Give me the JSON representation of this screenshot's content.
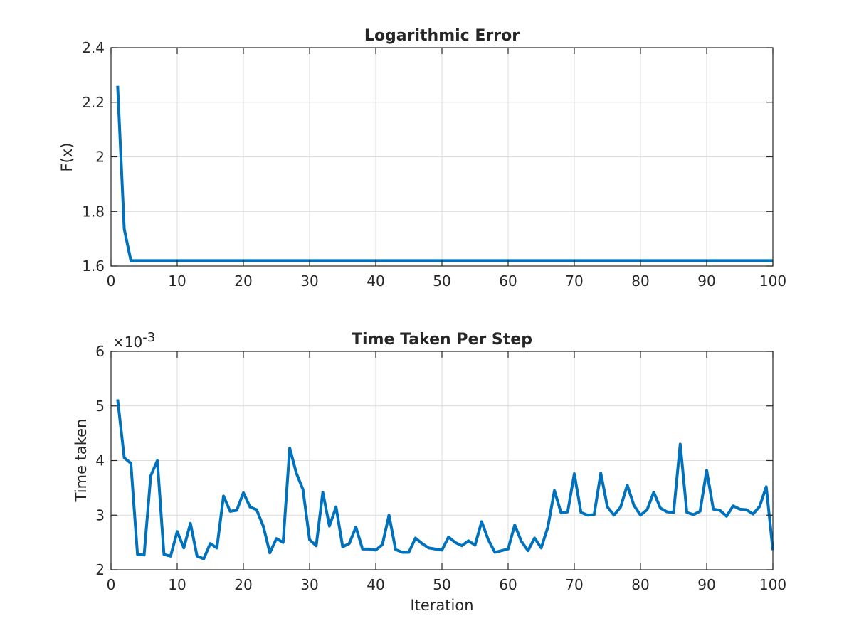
{
  "figure": {
    "background": "#ffffff",
    "line_color": "#0072BD",
    "grid_color": "#dcdcdc"
  },
  "chart_data": [
    {
      "type": "line",
      "title": "Logarithmic Error",
      "xlabel": "",
      "ylabel": "F(x)",
      "xlim": [
        0,
        100
      ],
      "ylim": [
        1.6,
        2.4
      ],
      "xticks": [
        0,
        10,
        20,
        30,
        40,
        50,
        60,
        70,
        80,
        90,
        100
      ],
      "yticks": [
        1.6,
        1.8,
        2.0,
        2.2,
        2.4
      ],
      "xtick_labels": [
        "0",
        "10",
        "20",
        "30",
        "40",
        "50",
        "60",
        "70",
        "80",
        "90",
        "100"
      ],
      "ytick_labels": [
        "1.6",
        "1.8",
        "2",
        "2.2",
        "2.4"
      ],
      "grid": true,
      "x_start": 1,
      "series": [
        {
          "values": [
            2.26,
            1.735,
            1.62,
            1.62,
            1.62,
            1.62,
            1.62,
            1.62,
            1.62,
            1.62,
            1.62,
            1.62,
            1.62,
            1.62,
            1.62,
            1.62,
            1.62,
            1.62,
            1.62,
            1.62,
            1.62,
            1.62,
            1.62,
            1.62,
            1.62,
            1.62,
            1.62,
            1.62,
            1.62,
            1.62,
            1.62,
            1.62,
            1.62,
            1.62,
            1.62,
            1.62,
            1.62,
            1.62,
            1.62,
            1.62,
            1.62,
            1.62,
            1.62,
            1.62,
            1.62,
            1.62,
            1.62,
            1.62,
            1.62,
            1.62,
            1.62,
            1.62,
            1.62,
            1.62,
            1.62,
            1.62,
            1.62,
            1.62,
            1.62,
            1.62,
            1.62,
            1.62,
            1.62,
            1.62,
            1.62,
            1.62,
            1.62,
            1.62,
            1.62,
            1.62,
            1.62,
            1.62,
            1.62,
            1.62,
            1.62,
            1.62,
            1.62,
            1.62,
            1.62,
            1.62,
            1.62,
            1.62,
            1.62,
            1.62,
            1.62,
            1.62,
            1.62,
            1.62,
            1.62,
            1.62,
            1.62,
            1.62,
            1.62,
            1.62,
            1.62,
            1.62,
            1.62,
            1.62,
            1.62,
            1.62
          ]
        }
      ]
    },
    {
      "type": "line",
      "title": "Time Taken Per Step",
      "xlabel": "Iteration",
      "ylabel": "Time taken",
      "exponent_base": "×10",
      "exponent_power": "-3",
      "xlim": [
        0,
        100
      ],
      "ylim": [
        2,
        6
      ],
      "xticks": [
        0,
        10,
        20,
        30,
        40,
        50,
        60,
        70,
        80,
        90,
        100
      ],
      "yticks": [
        2,
        3,
        4,
        5,
        6
      ],
      "xtick_labels": [
        "0",
        "10",
        "20",
        "30",
        "40",
        "50",
        "60",
        "70",
        "80",
        "90",
        "100"
      ],
      "ytick_labels": [
        "2",
        "3",
        "4",
        "5",
        "6"
      ],
      "grid": true,
      "x_start": 1,
      "series": [
        {
          "values": [
            5.12,
            4.05,
            3.95,
            2.28,
            2.27,
            3.72,
            4.0,
            2.28,
            2.25,
            2.7,
            2.4,
            2.85,
            2.25,
            2.2,
            2.48,
            2.4,
            3.35,
            3.07,
            3.09,
            3.41,
            3.15,
            3.1,
            2.8,
            2.31,
            2.57,
            2.5,
            4.23,
            3.77,
            3.47,
            2.55,
            2.44,
            3.42,
            2.8,
            3.15,
            2.42,
            2.48,
            2.78,
            2.38,
            2.38,
            2.36,
            2.46,
            3.0,
            2.37,
            2.32,
            2.32,
            2.58,
            2.48,
            2.4,
            2.38,
            2.36,
            2.6,
            2.5,
            2.44,
            2.53,
            2.45,
            2.88,
            2.55,
            2.32,
            2.35,
            2.38,
            2.82,
            2.52,
            2.35,
            2.58,
            2.4,
            2.78,
            3.45,
            3.04,
            3.06,
            3.76,
            3.05,
            3.0,
            3.01,
            3.77,
            3.15,
            3.0,
            3.15,
            3.55,
            3.18,
            3.0,
            3.1,
            3.42,
            3.13,
            3.06,
            3.05,
            4.3,
            3.05,
            3.01,
            3.07,
            3.82,
            3.11,
            3.09,
            2.98,
            3.17,
            3.11,
            3.1,
            3.02,
            3.16,
            3.52,
            2.36
          ]
        }
      ]
    }
  ]
}
